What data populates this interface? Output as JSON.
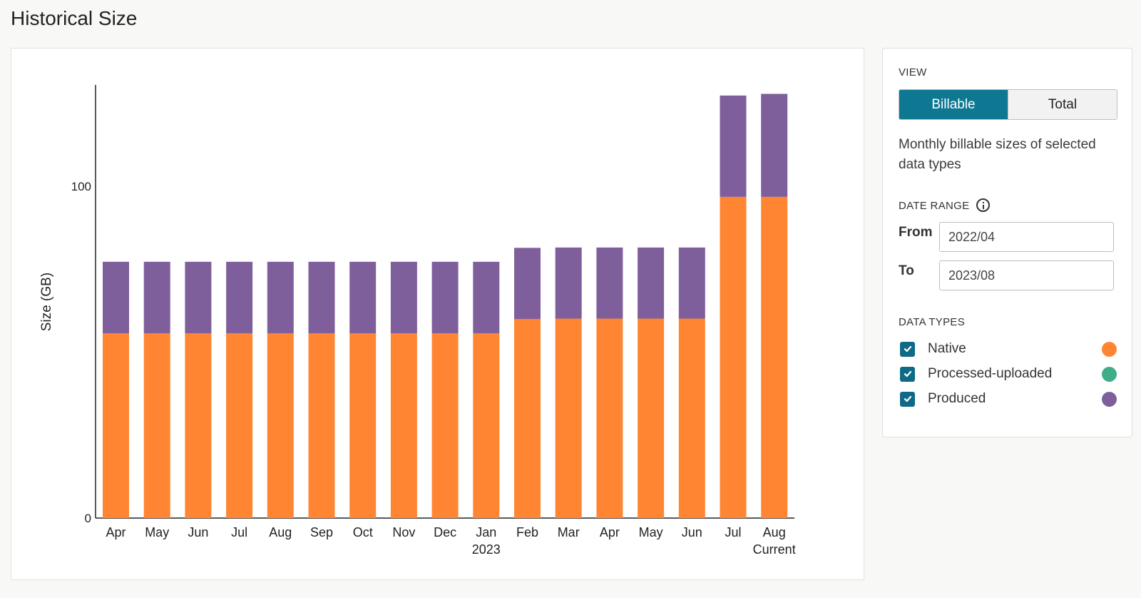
{
  "page": {
    "title": "Historical Size"
  },
  "panel": {
    "view_label": "VIEW",
    "view_options": [
      "Billable",
      "Total"
    ],
    "view_selected": "Billable",
    "view_description": "Monthly billable sizes of selected data types",
    "date_range_label": "DATE RANGE",
    "from_label": "From",
    "from_value": "2022/04",
    "to_label": "To",
    "to_value": "2023/08",
    "data_types_label": "DATA TYPES",
    "data_types": [
      {
        "label": "Native",
        "checked": true,
        "color": "#ff8533"
      },
      {
        "label": "Processed-uploaded",
        "checked": true,
        "color": "#3fad88"
      },
      {
        "label": "Produced",
        "checked": true,
        "color": "#7f5f9b"
      }
    ]
  },
  "chart_data": {
    "type": "bar",
    "stacked": true,
    "ylabel": "Size (GB)",
    "xlabel": "",
    "ylim": [
      0,
      130
    ],
    "yticks": [
      0,
      100
    ],
    "categories": [
      "Apr",
      "May",
      "Jun",
      "Jul",
      "Aug",
      "Sep",
      "Oct",
      "Nov",
      "Dec",
      "Jan",
      "Feb",
      "Mar",
      "Apr",
      "May",
      "Jun",
      "Jul",
      "Aug"
    ],
    "category_sublabels": [
      "",
      "",
      "",
      "",
      "",
      "",
      "",
      "",
      "",
      "2023",
      "",
      "",
      "",
      "",
      "",
      "",
      "Current"
    ],
    "series": [
      {
        "name": "Native",
        "color": "#ff8533",
        "values": [
          55.7,
          55.7,
          55.7,
          55.7,
          55.7,
          55.7,
          55.7,
          55.7,
          55.7,
          55.7,
          60.0,
          60.1,
          60.1,
          60.1,
          60.1,
          96.8,
          96.8
        ]
      },
      {
        "name": "Processed-uploaded",
        "color": "#3fad88",
        "values": [
          0,
          0,
          0,
          0,
          0,
          0,
          0,
          0,
          0,
          0,
          0,
          0,
          0,
          0,
          0,
          0,
          0
        ]
      },
      {
        "name": "Produced",
        "color": "#7f5f9b",
        "values": [
          22.4,
          22.4,
          22.4,
          22.4,
          22.4,
          22.4,
          22.4,
          22.4,
          22.4,
          22.4,
          22.3,
          22.3,
          22.3,
          22.3,
          22.3,
          31.4,
          31.9
        ]
      }
    ],
    "grid": false,
    "legend": "none"
  }
}
